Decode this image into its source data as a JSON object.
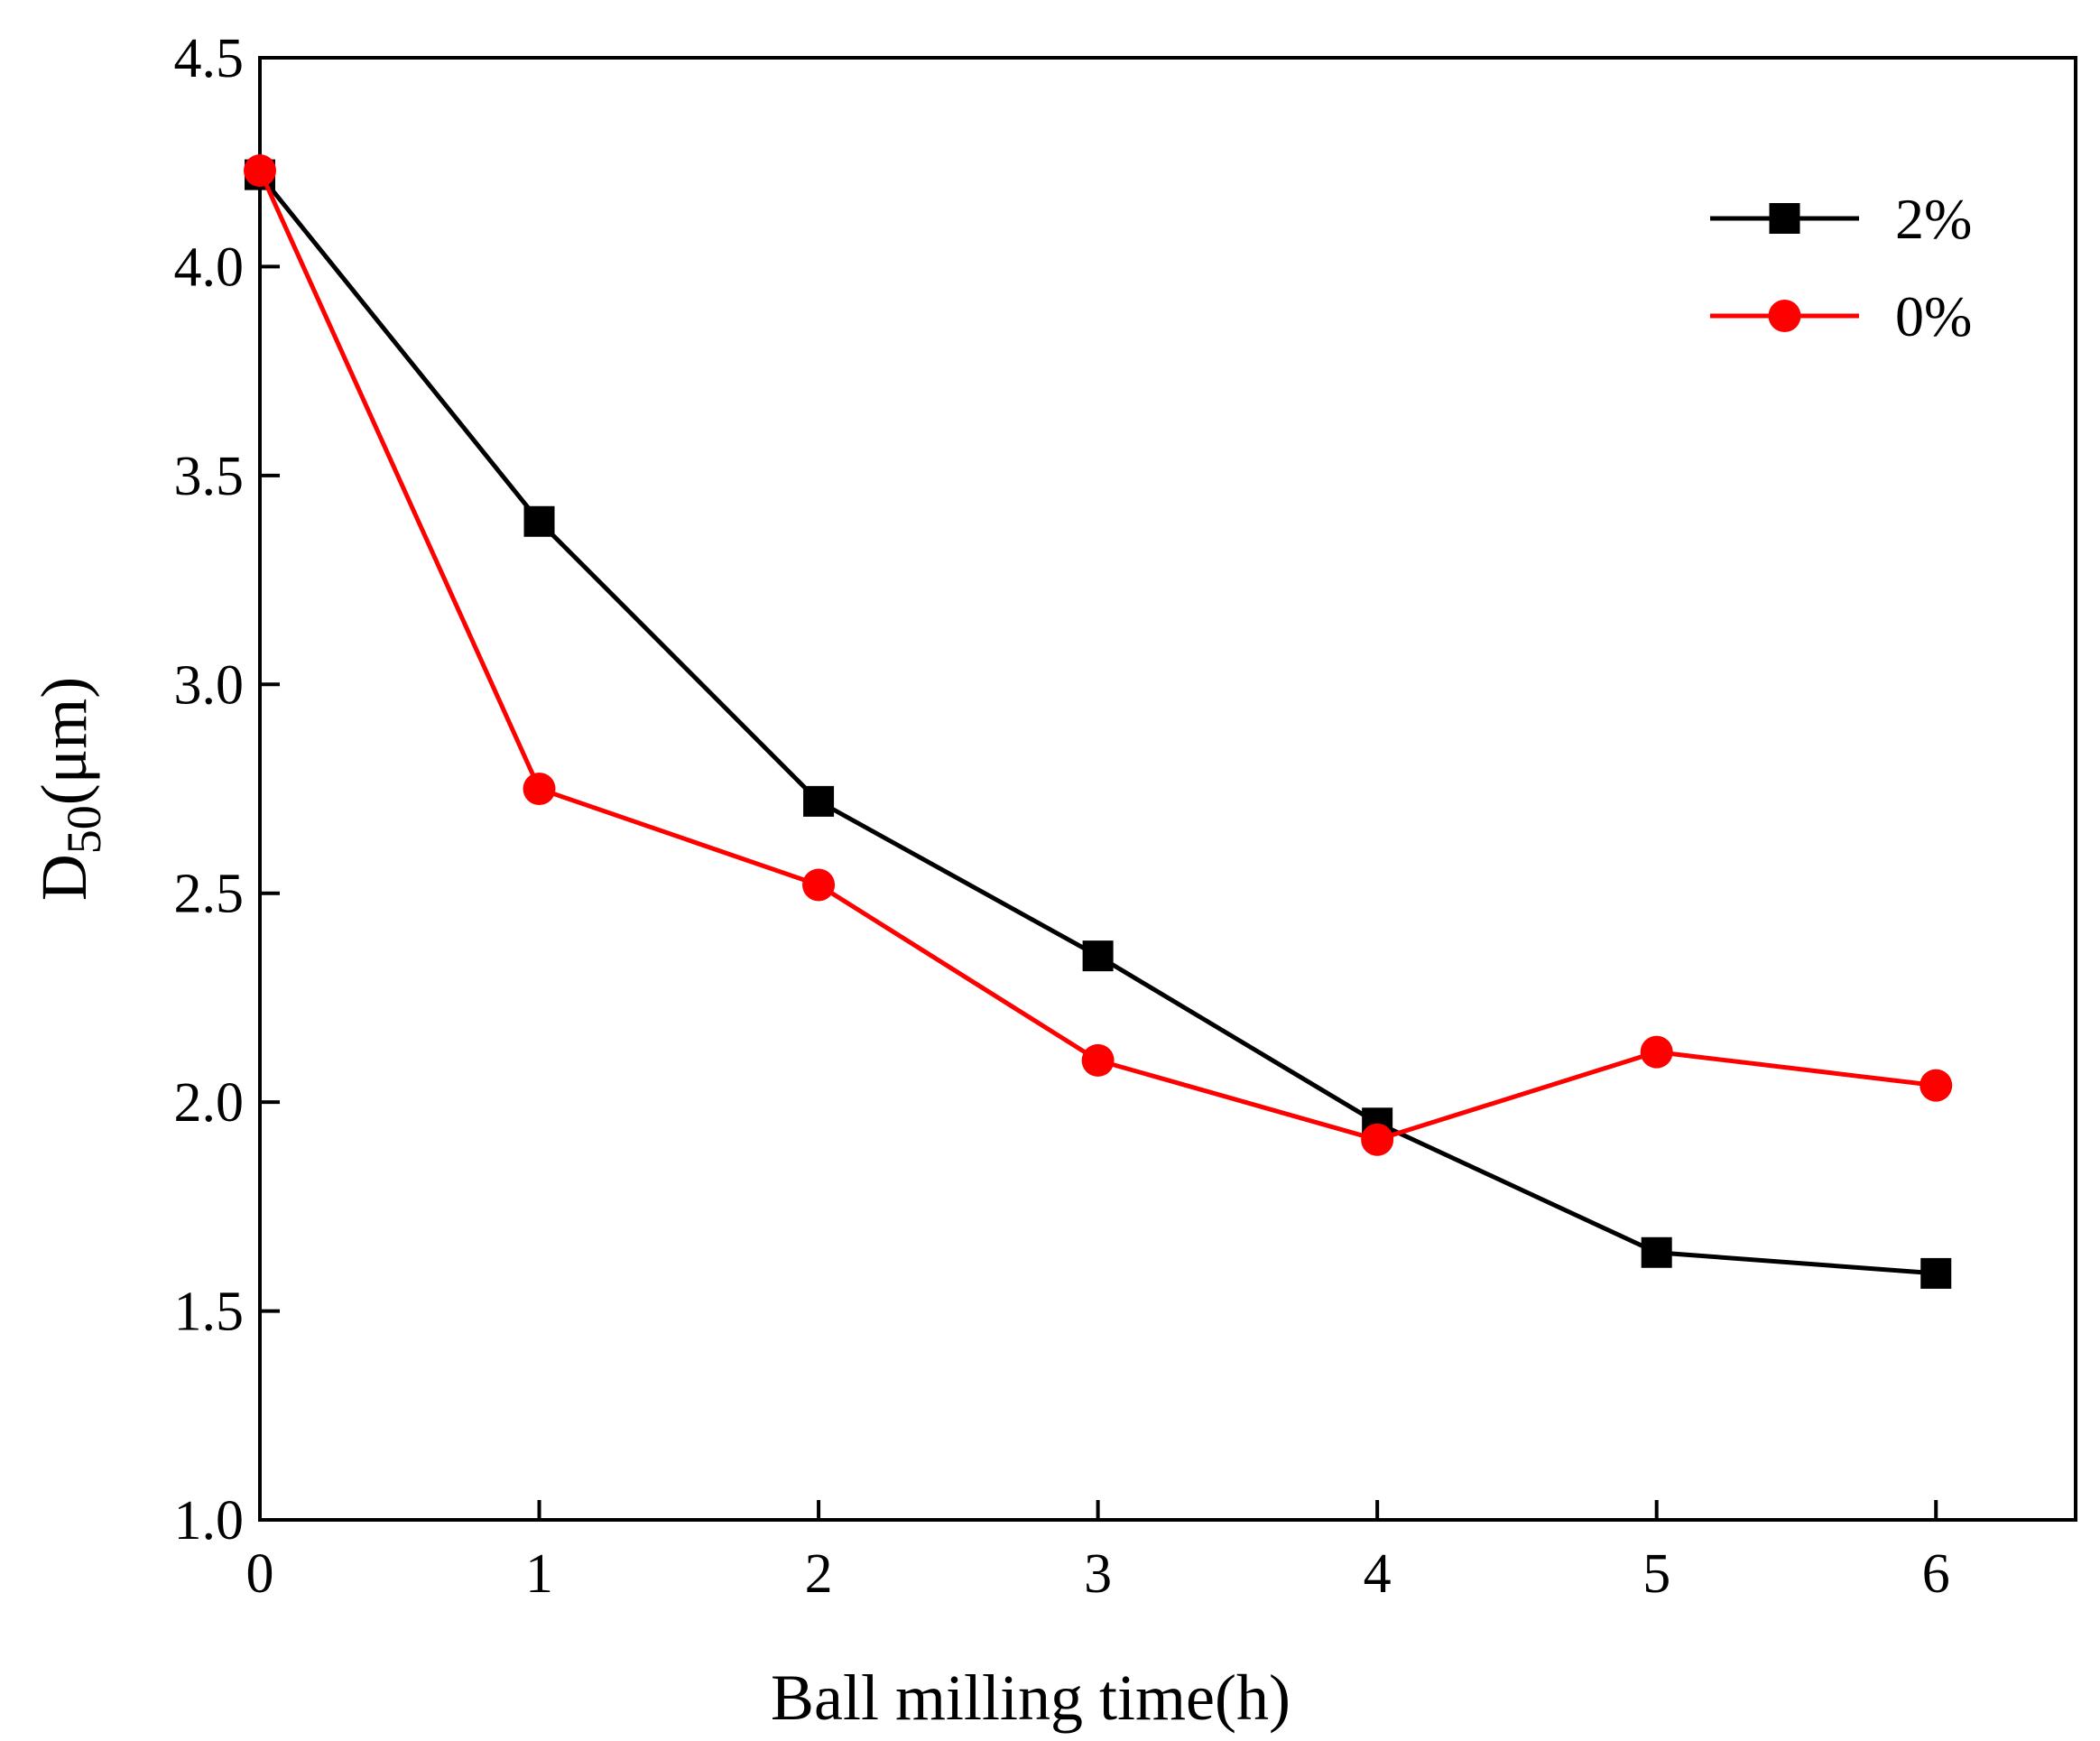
{
  "chart_data": {
    "type": "line",
    "title": "",
    "xlabel": "Ball milling time(h)",
    "ylabel_main": "D",
    "ylabel_sub": "50",
    "ylabel_unit": "(μm)",
    "x": [
      0,
      1,
      2,
      3,
      4,
      5,
      6
    ],
    "xlim": [
      0,
      6.5
    ],
    "ylim": [
      1.0,
      4.5
    ],
    "x_ticks": [
      {
        "value": 0,
        "label": "0"
      },
      {
        "value": 1,
        "label": "1"
      },
      {
        "value": 2,
        "label": "2"
      },
      {
        "value": 3,
        "label": "3"
      },
      {
        "value": 4,
        "label": "4"
      },
      {
        "value": 5,
        "label": "5"
      },
      {
        "value": 6,
        "label": "6"
      }
    ],
    "y_ticks": [
      {
        "value": 1.0,
        "label": "1.0"
      },
      {
        "value": 1.5,
        "label": "1.5"
      },
      {
        "value": 2.0,
        "label": "2.0"
      },
      {
        "value": 2.5,
        "label": "2.5"
      },
      {
        "value": 3.0,
        "label": "3.0"
      },
      {
        "value": 3.5,
        "label": "3.5"
      },
      {
        "value": 4.0,
        "label": "4.0"
      },
      {
        "value": 4.5,
        "label": "4.5"
      }
    ],
    "grid": false,
    "legend_position": "top-right",
    "series": [
      {
        "name": "2%",
        "color": "#000000",
        "marker": "square",
        "values": [
          4.22,
          3.39,
          2.72,
          2.35,
          1.95,
          1.64,
          1.59
        ]
      },
      {
        "name": "0%",
        "color": "#ff0000",
        "marker": "circle",
        "values": [
          4.23,
          2.75,
          2.52,
          2.1,
          1.91,
          2.12,
          2.04
        ]
      }
    ]
  }
}
